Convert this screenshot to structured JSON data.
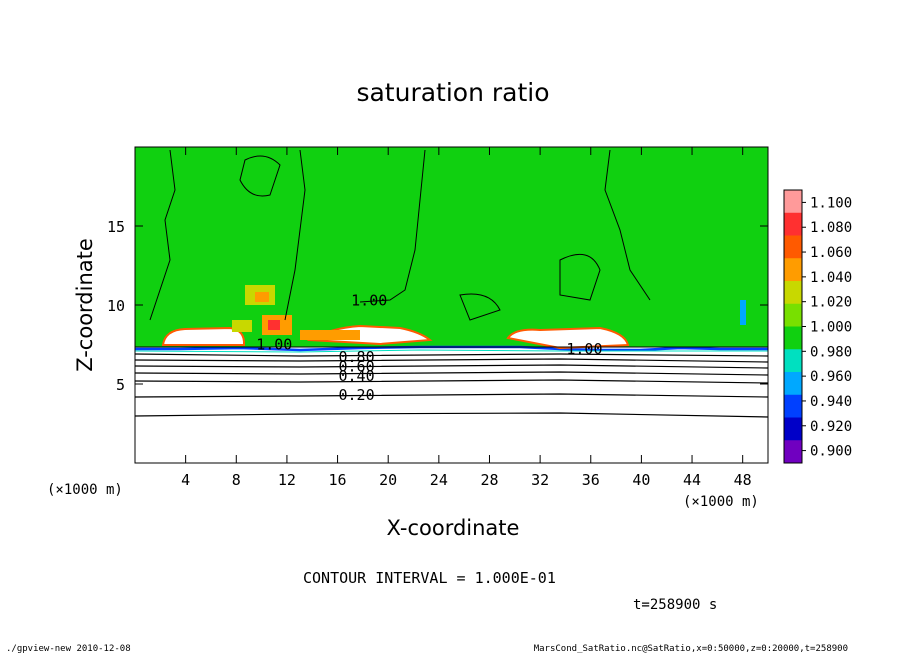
{
  "chart_data": {
    "type": "heatmap",
    "title": "saturation ratio",
    "xlabel": "X-coordinate",
    "ylabel": "Z-coordinate",
    "x_unit_left": "(×1000 m)",
    "x_unit_right": "(×1000 m)",
    "xlim": [
      0,
      50
    ],
    "ylim": [
      0,
      20
    ],
    "xticks": [
      4,
      8,
      12,
      16,
      20,
      24,
      28,
      32,
      36,
      40,
      44,
      48
    ],
    "yticks": [
      5,
      10,
      15
    ],
    "colorbar": {
      "levels": [
        "1.100",
        "1.080",
        "1.060",
        "1.040",
        "1.020",
        "1.000",
        "0.980",
        "0.960",
        "0.940",
        "0.920",
        "0.900"
      ],
      "colors": [
        "#ff9a9a",
        "#ff3030",
        "#ff5a00",
        "#ff9c00",
        "#c8d800",
        "#78e000",
        "#10d010",
        "#00e0c0",
        "#00a8ff",
        "#0040ff",
        "#0000c8",
        "#7000c0"
      ]
    },
    "contour_labels": [
      {
        "text": "1.00",
        "x": 18.5,
        "z": 10.3
      },
      {
        "text": "1.00",
        "x": 35.5,
        "z": 7.2
      },
      {
        "text": "1.00",
        "x": 11.0,
        "z": 7.5
      },
      {
        "text": "0.80",
        "x": 17.5,
        "z": 6.7
      },
      {
        "text": "0.60",
        "x": 17.5,
        "z": 6.1
      },
      {
        "text": "0.40",
        "x": 17.5,
        "z": 5.5
      },
      {
        "text": "0.20",
        "x": 17.5,
        "z": 4.3
      }
    ],
    "contour_interval_text": "CONTOUR INTERVAL = 1.000E-01",
    "time_text": "t=258900 s"
  },
  "footer": {
    "left": "./gpview-new  2010-12-08",
    "right": "MarsCond_SatRatio.nc@SatRatio,x=0:50000,z=0:20000,t=258900"
  }
}
